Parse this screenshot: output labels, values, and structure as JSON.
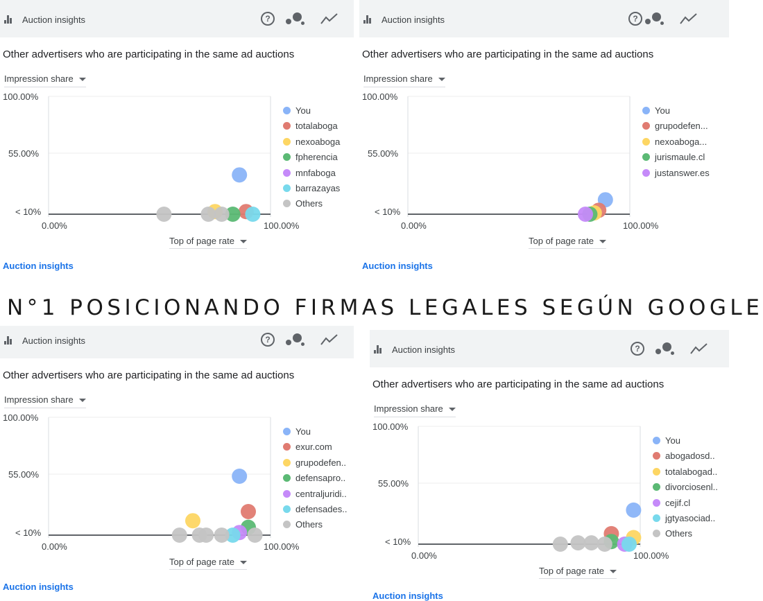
{
  "banner": {
    "text": "N°1 POSICIONANDO FIRMAS LEGALES SEGÚN GOOGLE"
  },
  "colors": {
    "header_bg": "#f1f3f4",
    "link": "#1a73e8",
    "axis": "#5f6368"
  },
  "icons": [
    "bar-chart-icon",
    "help-icon",
    "bubble-chart-icon",
    "trend-line-icon"
  ],
  "panels": [
    {
      "header_title": "Auction insights",
      "subtitle": "Other advertisers who are participating in the same ad auctions",
      "y_dropdown": "Impression share",
      "x_dropdown": "Top of page rate",
      "y_ticks": [
        "100.00%",
        "55.00%",
        "< 10%"
      ],
      "x_ticks": [
        "0.00%",
        "100.00%"
      ],
      "footer_link": "Auction insights",
      "legend": [
        {
          "name": "You",
          "color": "#8ab4f8"
        },
        {
          "name": "totalaboga",
          "color": "#e07b71"
        },
        {
          "name": "nexoaboga",
          "color": "#fdd663"
        },
        {
          "name": "fpherencia",
          "color": "#5bb974"
        },
        {
          "name": "mnfaboga",
          "color": "#c58af9"
        },
        {
          "name": "barrazayas",
          "color": "#78d9ec"
        },
        {
          "name": "Others",
          "color": "#c4c4c4"
        }
      ],
      "chart_data": {
        "type": "scatter",
        "xlabel": "Top of page rate",
        "ylabel": "Impression share",
        "xlim": [
          0,
          100
        ],
        "ylim": [
          10,
          100
        ],
        "points": [
          {
            "series": "You",
            "x": 86,
            "y": 40
          },
          {
            "series": "totalaboga",
            "x": 89,
            "y": 12
          },
          {
            "series": "nexoaboga",
            "x": 75,
            "y": 12
          },
          {
            "series": "fpherencia",
            "x": 83,
            "y": 10
          },
          {
            "series": "barrazayas",
            "x": 92,
            "y": 10
          },
          {
            "series": "Others",
            "x": 52,
            "y": 10
          },
          {
            "series": "Others",
            "x": 72,
            "y": 10
          },
          {
            "series": "Others",
            "x": 78,
            "y": 10
          }
        ]
      }
    },
    {
      "header_title": "Auction insights",
      "subtitle": "Other advertisers who are participating in the same ad auctions",
      "y_dropdown": "Impression share",
      "x_dropdown": "Top of page rate",
      "y_ticks": [
        "100.00%",
        "55.00%",
        "< 10%"
      ],
      "x_ticks": [
        "0.00%",
        "100.00%"
      ],
      "footer_link": "Auction insights",
      "legend": [
        {
          "name": "You",
          "color": "#8ab4f8"
        },
        {
          "name": "grupodefen...",
          "color": "#e07b71"
        },
        {
          "name": "nexoaboga...",
          "color": "#fdd663"
        },
        {
          "name": "jurismaule.cl",
          "color": "#5bb974"
        },
        {
          "name": "justanswer.es",
          "color": "#c58af9"
        }
      ],
      "chart_data": {
        "type": "scatter",
        "xlabel": "Top of page rate",
        "ylabel": "Impression share",
        "xlim": [
          0,
          100
        ],
        "ylim": [
          10,
          100
        ],
        "points": [
          {
            "series": "You",
            "x": 89,
            "y": 21
          },
          {
            "series": "grupodefen...",
            "x": 86,
            "y": 13
          },
          {
            "series": "nexoaboga...",
            "x": 84,
            "y": 11
          },
          {
            "series": "jurismaule.cl",
            "x": 82,
            "y": 10
          },
          {
            "series": "justanswer.es",
            "x": 80,
            "y": 10
          }
        ]
      }
    },
    {
      "header_title": "Auction insights",
      "subtitle": "Other advertisers who are participating in the same ad auctions",
      "y_dropdown": "Impression share",
      "x_dropdown": "Top of page rate",
      "y_ticks": [
        "100.00%",
        "55.00%",
        "< 10%"
      ],
      "x_ticks": [
        "0.00%",
        "100.00%"
      ],
      "footer_link": "Auction insights",
      "legend": [
        {
          "name": "You",
          "color": "#8ab4f8"
        },
        {
          "name": "exur.com",
          "color": "#e07b71"
        },
        {
          "name": "grupodefen..",
          "color": "#fdd663"
        },
        {
          "name": "defensapro..",
          "color": "#5bb974"
        },
        {
          "name": "centraljuridi..",
          "color": "#c58af9"
        },
        {
          "name": "defensades..",
          "color": "#78d9ec"
        },
        {
          "name": "Others",
          "color": "#c4c4c4"
        }
      ],
      "chart_data": {
        "type": "scatter",
        "xlabel": "Top of page rate",
        "ylabel": "Impression share",
        "xlim": [
          0,
          100
        ],
        "ylim": [
          10,
          100
        ],
        "points": [
          {
            "series": "You",
            "x": 86,
            "y": 55
          },
          {
            "series": "exur.com",
            "x": 90,
            "y": 28
          },
          {
            "series": "grupodefen..",
            "x": 65,
            "y": 21
          },
          {
            "series": "defensapro..",
            "x": 90,
            "y": 16
          },
          {
            "series": "centraljuridi..",
            "x": 86,
            "y": 12
          },
          {
            "series": "defensades..",
            "x": 83,
            "y": 10
          },
          {
            "series": "Others",
            "x": 59,
            "y": 10
          },
          {
            "series": "Others",
            "x": 68,
            "y": 10
          },
          {
            "series": "Others",
            "x": 71,
            "y": 10
          },
          {
            "series": "Others",
            "x": 78,
            "y": 10
          },
          {
            "series": "Others",
            "x": 93,
            "y": 10
          }
        ]
      }
    },
    {
      "header_title": "Auction insights",
      "subtitle": "Other advertisers who are participating in the same ad auctions",
      "y_dropdown": "Impression share",
      "x_dropdown": "Top of page rate",
      "y_ticks": [
        "100.00%",
        "55.00%",
        "< 10%"
      ],
      "x_ticks": [
        "0.00%",
        "100.00%"
      ],
      "footer_link": "Auction insights",
      "legend": [
        {
          "name": "You",
          "color": "#8ab4f8"
        },
        {
          "name": "abogadosd..",
          "color": "#e07b71"
        },
        {
          "name": "totalabogad..",
          "color": "#fdd663"
        },
        {
          "name": "divorciosenl..",
          "color": "#5bb974"
        },
        {
          "name": "cejif.cl",
          "color": "#c58af9"
        },
        {
          "name": "jgtyasociad..",
          "color": "#78d9ec"
        },
        {
          "name": "Others",
          "color": "#c4c4c4"
        }
      ],
      "chart_data": {
        "type": "scatter",
        "xlabel": "Top of page rate",
        "ylabel": "Impression share",
        "xlim": [
          0,
          100
        ],
        "ylim": [
          10,
          100
        ],
        "points": [
          {
            "series": "You",
            "x": 97,
            "y": 36
          },
          {
            "series": "abogadosd..",
            "x": 87,
            "y": 18
          },
          {
            "series": "totalabogad..",
            "x": 97,
            "y": 15
          },
          {
            "series": "divorciosenl..",
            "x": 87,
            "y": 12
          },
          {
            "series": "cejif.cl",
            "x": 93,
            "y": 10
          },
          {
            "series": "jgtyasociad..",
            "x": 95,
            "y": 10
          },
          {
            "series": "Others",
            "x": 64,
            "y": 10
          },
          {
            "series": "Others",
            "x": 72,
            "y": 11
          },
          {
            "series": "Others",
            "x": 78,
            "y": 11
          },
          {
            "series": "Others",
            "x": 84,
            "y": 10
          }
        ]
      }
    }
  ]
}
